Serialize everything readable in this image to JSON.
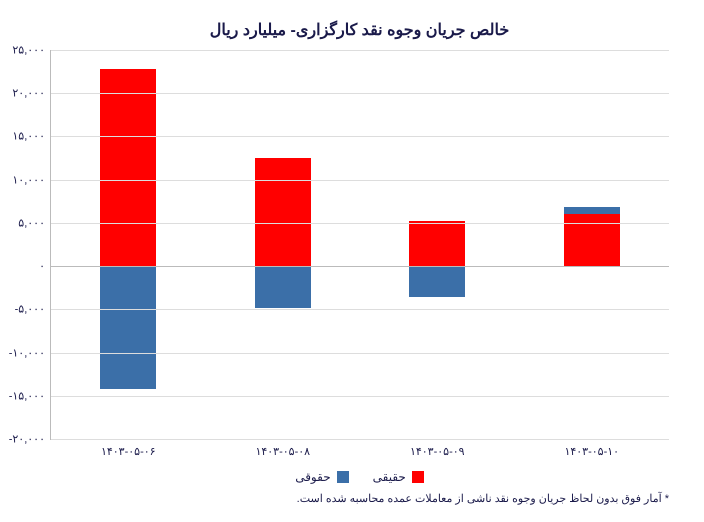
{
  "chart": {
    "type": "bar-stacked",
    "title": "خالص جریان وجوه نقد کارگزاری- میلیارد ریال",
    "footnote": "* آمار فوق بدون لحاظ جریان وجوه نقد ناشی از معاملات عمده محاسبه شده است.",
    "background_color": "#ffffff",
    "grid_color": "#dddddd",
    "axis_color": "#bbbbbb",
    "text_color": "#1a1a4a",
    "title_fontsize": 16,
    "label_fontsize": 11,
    "y_axis": {
      "min": -20000,
      "max": 25000,
      "step": 5000,
      "labels": [
        "-۲۰,۰۰۰",
        "-۱۵,۰۰۰",
        "-۱۰,۰۰۰",
        "-۵,۰۰۰",
        "۰",
        "۵,۰۰۰",
        "۱۰,۰۰۰",
        "۱۵,۰۰۰",
        "۲۰,۰۰۰",
        "۲۵,۰۰۰"
      ],
      "values": [
        -20000,
        -15000,
        -10000,
        -5000,
        0,
        5000,
        10000,
        15000,
        20000,
        25000
      ]
    },
    "categories": [
      "۱۴۰۳-۰۵-۰۶",
      "۱۴۰۳-۰۵-۰۸",
      "۱۴۰۳-۰۵-۰۹",
      "۱۴۰۳-۰۵-۱۰"
    ],
    "series": [
      {
        "name": "حقیقی",
        "color": "#ff0000",
        "values": [
          22800,
          12500,
          5200,
          6000
        ]
      },
      {
        "name": "حقوقی",
        "color": "#3b6fa8",
        "values": [
          -14200,
          -4800,
          -3600,
          800
        ]
      }
    ],
    "bar_width_pct": 36
  }
}
